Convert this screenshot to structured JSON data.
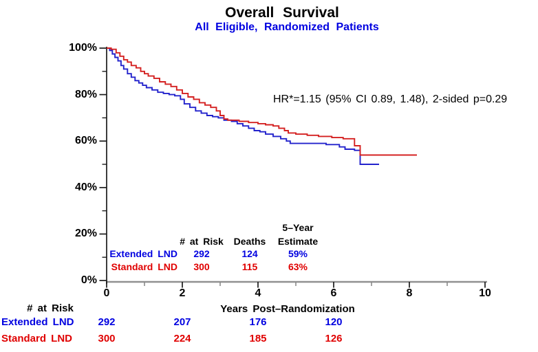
{
  "title": "Overall Survival",
  "subtitle": "All Eligible, Randomized Patients",
  "annotation": "HR*=1.15 (95% CI 0.89, 1.48), 2-sided p=0.29",
  "colors": {
    "extended_lnd_curve": "#2222cc",
    "standard_lnd_curve": "#d42020",
    "extended_lnd_text": "#0000e0",
    "standard_lnd_text": "#e00000",
    "x_axis_line": "#909090",
    "axis_black": "#1a1a1a"
  },
  "chart_data": {
    "type": "line",
    "subtype": "kaplan-meier-step",
    "title": "Overall Survival",
    "subtitle": "All Eligible, Randomized Patients",
    "xlabel": "Years Post–Randomization",
    "ylabel": "",
    "xlim": [
      0,
      10
    ],
    "ylim": [
      0,
      100
    ],
    "grid": false,
    "x_tick_labels": [
      "0",
      "2",
      "4",
      "6",
      "8",
      "10"
    ],
    "x_minor_ticks": [
      1,
      3,
      5,
      7,
      9
    ],
    "y_tick_labels": [
      "100%",
      "80%",
      "60%",
      "40%",
      "20%",
      "0%"
    ],
    "y_minor_ticks": [
      10,
      30,
      50,
      70,
      90
    ],
    "annotation": "HR*=1.15 (95% CI 0.89, 1.48), 2-sided p=0.29",
    "series": [
      {
        "id": "extended",
        "name": "Extended LND",
        "color": "#2222cc",
        "points": [
          [
            0,
            100
          ],
          [
            0.08,
            99
          ],
          [
            0.15,
            97.5
          ],
          [
            0.22,
            96
          ],
          [
            0.3,
            94.5
          ],
          [
            0.38,
            92.5
          ],
          [
            0.45,
            91
          ],
          [
            0.55,
            89
          ],
          [
            0.65,
            87.5
          ],
          [
            0.75,
            86
          ],
          [
            0.85,
            85
          ],
          [
            0.95,
            84
          ],
          [
            1.05,
            83
          ],
          [
            1.2,
            82
          ],
          [
            1.35,
            81
          ],
          [
            1.5,
            80.5
          ],
          [
            1.65,
            80
          ],
          [
            1.8,
            79.5
          ],
          [
            1.95,
            78
          ],
          [
            2.05,
            76
          ],
          [
            2.2,
            74.5
          ],
          [
            2.35,
            73
          ],
          [
            2.5,
            72
          ],
          [
            2.65,
            71
          ],
          [
            2.8,
            70.5
          ],
          [
            2.95,
            70
          ],
          [
            3.1,
            69
          ],
          [
            3.3,
            68.5
          ],
          [
            3.45,
            67.5
          ],
          [
            3.6,
            66.5
          ],
          [
            3.75,
            65.5
          ],
          [
            3.9,
            64.5
          ],
          [
            4.05,
            64
          ],
          [
            4.2,
            63
          ],
          [
            4.4,
            62
          ],
          [
            4.6,
            61
          ],
          [
            4.75,
            60
          ],
          [
            4.85,
            59
          ],
          [
            5.8,
            58.5
          ],
          [
            6.15,
            57.5
          ],
          [
            6.3,
            56.5
          ],
          [
            6.55,
            56
          ],
          [
            6.7,
            50
          ],
          [
            7.2,
            50
          ]
        ]
      },
      {
        "id": "standard",
        "name": "Standard LND",
        "color": "#d42020",
        "points": [
          [
            0,
            100
          ],
          [
            0.12,
            99.5
          ],
          [
            0.25,
            98
          ],
          [
            0.35,
            96.5
          ],
          [
            0.45,
            95
          ],
          [
            0.55,
            94
          ],
          [
            0.65,
            92.5
          ],
          [
            0.78,
            91.5
          ],
          [
            0.9,
            90
          ],
          [
            1.0,
            89
          ],
          [
            1.1,
            88
          ],
          [
            1.25,
            87
          ],
          [
            1.4,
            85.5
          ],
          [
            1.55,
            84.5
          ],
          [
            1.7,
            83.5
          ],
          [
            1.85,
            82
          ],
          [
            2.0,
            80.5
          ],
          [
            2.15,
            79
          ],
          [
            2.3,
            78
          ],
          [
            2.45,
            76.5
          ],
          [
            2.6,
            75.5
          ],
          [
            2.75,
            74.5
          ],
          [
            2.9,
            73
          ],
          [
            3.0,
            71
          ],
          [
            3.1,
            69.5
          ],
          [
            3.2,
            69
          ],
          [
            3.5,
            68.5
          ],
          [
            3.75,
            68
          ],
          [
            4.0,
            67.5
          ],
          [
            4.2,
            67
          ],
          [
            4.4,
            66.5
          ],
          [
            4.55,
            65.5
          ],
          [
            4.7,
            64.5
          ],
          [
            4.8,
            63.5
          ],
          [
            5.0,
            63
          ],
          [
            5.3,
            62.5
          ],
          [
            5.6,
            62
          ],
          [
            5.95,
            61.5
          ],
          [
            6.25,
            61
          ],
          [
            6.55,
            58
          ],
          [
            6.7,
            54
          ],
          [
            8.2,
            54
          ]
        ]
      }
    ]
  },
  "summary_table": {
    "header_top": "5–Year",
    "columns": [
      "# at Risk",
      "Deaths",
      "Estimate"
    ],
    "rows": [
      {
        "label": "Extended LND",
        "at_risk": "292",
        "deaths": "124",
        "estimate": "59%"
      },
      {
        "label": "Standard LND",
        "at_risk": "300",
        "deaths": "115",
        "estimate": "63%"
      }
    ]
  },
  "risk_table": {
    "title": "# at Risk",
    "timepoints": [
      "0",
      "2",
      "4",
      "6"
    ],
    "rows": [
      {
        "label": "Extended LND",
        "counts": [
          "292",
          "207",
          "176",
          "120"
        ]
      },
      {
        "label": "Standard LND",
        "counts": [
          "300",
          "224",
          "185",
          "126"
        ]
      }
    ]
  }
}
